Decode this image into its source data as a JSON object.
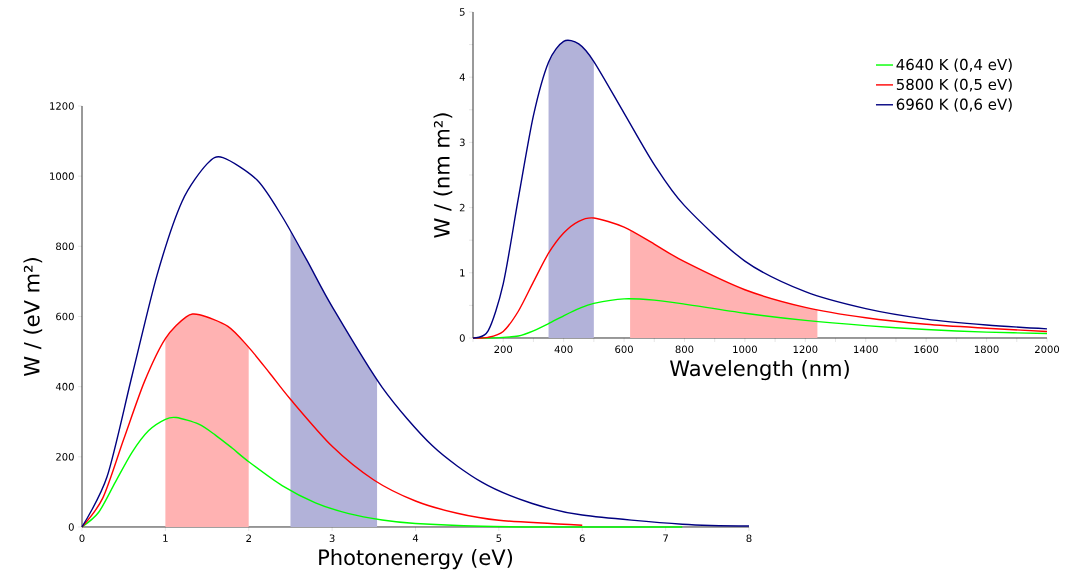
{
  "chart_data": [
    {
      "type": "line",
      "xlabel": "Photonenergy (eV)",
      "ylabel": "W / (eV m²)",
      "xlim": [
        0,
        8
      ],
      "ylim": [
        0,
        1200
      ],
      "xticks": [
        0,
        1,
        2,
        3,
        4,
        5,
        6,
        7,
        8
      ],
      "yticks": [
        0,
        200,
        400,
        600,
        800,
        1000,
        1200
      ],
      "grid": false,
      "legend": false,
      "series": [
        {
          "color": "#00ff00",
          "x": [
            0,
            0.2,
            0.4,
            0.6,
            0.8,
            1.0,
            1.13,
            1.4,
            1.6,
            1.8,
            2.0,
            2.4,
            2.8,
            3.2,
            3.6,
            4.0,
            4.8,
            5.6,
            6.4,
            7.2
          ],
          "values": [
            0,
            42,
            128,
            213,
            275,
            307,
            312,
            293,
            262,
            225,
            186,
            118,
            69,
            38,
            20,
            10,
            2,
            0,
            0,
            0
          ]
        },
        {
          "color": "#ff0000",
          "x": [
            0,
            0.25,
            0.5,
            0.75,
            1.0,
            1.25,
            1.41,
            1.75,
            2.0,
            2.25,
            2.5,
            3.0,
            3.5,
            4.0,
            4.5,
            5.0,
            6.0
          ],
          "values": [
            0,
            83,
            250,
            415,
            537,
            599,
            605,
            572,
            512,
            439,
            364,
            230,
            134,
            74,
            39,
            19,
            5
          ]
        },
        {
          "color": "#000080",
          "x": [
            0,
            0.3,
            0.6,
            0.9,
            1.2,
            1.5,
            1.69,
            2.1,
            2.4,
            2.7,
            3.0,
            3.6,
            4.2,
            4.8,
            5.4,
            6.0,
            7.2,
            8.0
          ],
          "values": [
            0,
            143,
            431,
            718,
            928,
            1035,
            1053,
            989,
            885,
            759,
            628,
            398,
            232,
            127,
            67,
            34,
            8,
            3
          ]
        }
      ],
      "bands": [
        {
          "axis": "x",
          "from": 1,
          "to": 2,
          "color": "#ffb2b2"
        },
        {
          "axis": "x",
          "from": 2.5,
          "to": 3.54,
          "color": "#b2b2d9"
        }
      ]
    },
    {
      "type": "line",
      "xlabel": "Wavelength (nm)",
      "ylabel": "W / (nm m²)",
      "xlim": [
        100,
        2000
      ],
      "ylim": [
        0,
        5
      ],
      "xticks": [
        {
          "value": 100,
          "label": null
        },
        200,
        {
          "value": 300,
          "label": null
        },
        400,
        {
          "value": 500,
          "label": null
        },
        600,
        {
          "value": 700,
          "label": null
        },
        800,
        {
          "value": 900,
          "label": null
        },
        1000,
        {
          "value": 1100,
          "label": null
        },
        1200,
        {
          "value": 1300,
          "label": null
        },
        1400,
        {
          "value": 1500,
          "label": null
        },
        1600,
        {
          "value": 1700,
          "label": null
        },
        1800,
        {
          "value": 1900,
          "label": null
        },
        2000
      ],
      "yticks": [
        0,
        {
          "value": 0.5,
          "label": null
        },
        1,
        {
          "value": 1.5,
          "label": null
        },
        2,
        {
          "value": 2.5,
          "label": null
        },
        3,
        {
          "value": 3.5,
          "label": null
        },
        4,
        {
          "value": 4.5,
          "label": null
        },
        5
      ],
      "grid": false,
      "legend": "top right",
      "x": [
        100,
        150,
        200,
        250,
        300,
        350,
        400,
        450,
        500,
        600,
        700,
        800,
        1000,
        1200,
        1400,
        1600,
        1800,
        2000
      ],
      "series": [
        {
          "name": "4640 K  (0,4 eV)",
          "color": "#00ff00",
          "values": [
            0,
            0,
            0.01,
            0.03,
            0.11,
            0.22,
            0.34,
            0.45,
            0.53,
            0.6,
            0.58,
            0.52,
            0.38,
            0.27,
            0.19,
            0.13,
            0.09,
            0.07
          ]
        },
        {
          "name": "5800 K  (0,5 eV)",
          "color": "#ff0000",
          "values": [
            0,
            0.01,
            0.1,
            0.41,
            0.86,
            1.3,
            1.61,
            1.79,
            1.84,
            1.7,
            1.44,
            1.17,
            0.74,
            0.47,
            0.31,
            0.21,
            0.15,
            0.1
          ]
        },
        {
          "name": "6960 K  (0,6 eV)",
          "color": "#000080",
          "values": [
            0,
            0.11,
            0.83,
            2.14,
            3.41,
            4.23,
            4.55,
            4.51,
            4.24,
            3.45,
            2.66,
            2.03,
            1.18,
            0.71,
            0.45,
            0.29,
            0.2,
            0.14
          ]
        }
      ],
      "bands": [
        {
          "axis": "x",
          "from": 350,
          "to": 500,
          "color": "#b2b2d9"
        },
        {
          "axis": "x",
          "from": 620,
          "to": 1240,
          "color": "#ffb2b2"
        }
      ]
    }
  ]
}
